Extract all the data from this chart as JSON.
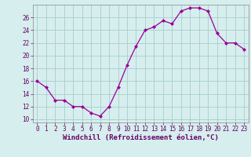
{
  "x": [
    0,
    1,
    2,
    3,
    4,
    5,
    6,
    7,
    8,
    9,
    10,
    11,
    12,
    13,
    14,
    15,
    16,
    17,
    18,
    19,
    20,
    21,
    22,
    23
  ],
  "y": [
    16,
    15,
    13,
    13,
    12,
    12,
    11,
    10.5,
    12,
    15,
    18.5,
    21.5,
    24,
    24.5,
    25.5,
    25,
    27,
    27.5,
    27.5,
    27,
    23.5,
    22,
    22,
    21
  ],
  "line_color": "#990099",
  "marker": "D",
  "marker_size": 2.0,
  "bg_color": "#d6eeee",
  "grid_color": "#aacccc",
  "xlabel": "Windchill (Refroidissement éolien,°C)",
  "xlabel_fontsize": 6.5,
  "ylim": [
    9.5,
    28.0
  ],
  "yticks": [
    10,
    12,
    14,
    16,
    18,
    20,
    22,
    24,
    26
  ],
  "xticks": [
    0,
    1,
    2,
    3,
    4,
    5,
    6,
    7,
    8,
    9,
    10,
    11,
    12,
    13,
    14,
    15,
    16,
    17,
    18,
    19,
    20,
    21,
    22,
    23
  ],
  "tick_fontsize": 5.5,
  "tick_color": "#660066",
  "label_color": "#660066",
  "spine_color": "#888888"
}
